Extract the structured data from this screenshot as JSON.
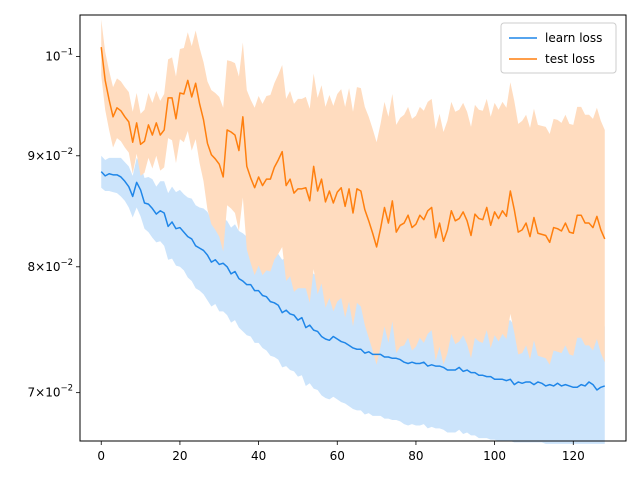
{
  "chart_data": {
    "type": "line",
    "title": "",
    "xlabel": "",
    "ylabel": "",
    "yscale": "log",
    "xlim": [
      -5.4,
      133.4
    ],
    "ylim": [
      0.0665,
      0.1045
    ],
    "xticks": [
      0,
      20,
      40,
      60,
      80,
      100,
      120
    ],
    "xtick_labels": [
      "0",
      "20",
      "40",
      "60",
      "80",
      "100",
      "120"
    ],
    "yticks": [
      0.07,
      0.08,
      0.09,
      0.1
    ],
    "ytick_labels": [
      {
        "base": "7",
        "exp": "-2"
      },
      {
        "base": "8",
        "exp": "-2"
      },
      {
        "base": "9",
        "exp": "-2"
      },
      {
        "base": "10",
        "exp": "-1"
      }
    ],
    "grid": false,
    "legend": {
      "position": "top-right"
    },
    "x_step": 1,
    "series": [
      {
        "name": "learn loss",
        "color": "#1f86e8",
        "band_color": "#cce4fb",
        "values": [
          0.0885,
          0.0881,
          0.0883,
          0.0882,
          0.0882,
          0.088,
          0.0876,
          0.0871,
          0.0862,
          0.0875,
          0.0868,
          0.0856,
          0.0855,
          0.0851,
          0.0846,
          0.0849,
          0.0847,
          0.0835,
          0.0839,
          0.0833,
          0.0834,
          0.083,
          0.0826,
          0.0824,
          0.0818,
          0.0816,
          0.0814,
          0.081,
          0.0804,
          0.0806,
          0.0802,
          0.0803,
          0.08,
          0.0794,
          0.0796,
          0.079,
          0.0788,
          0.0785,
          0.0785,
          0.078,
          0.078,
          0.0776,
          0.0775,
          0.0771,
          0.077,
          0.0768,
          0.0762,
          0.0764,
          0.0761,
          0.076,
          0.0756,
          0.0758,
          0.075,
          0.0752,
          0.0748,
          0.0747,
          0.0743,
          0.0741,
          0.074,
          0.0743,
          0.0741,
          0.0739,
          0.0738,
          0.0736,
          0.0734,
          0.0733,
          0.0733,
          0.073,
          0.0731,
          0.0729,
          0.0729,
          0.0729,
          0.0727,
          0.0727,
          0.0726,
          0.0726,
          0.0725,
          0.0723,
          0.0722,
          0.0723,
          0.0722,
          0.0722,
          0.0723,
          0.072,
          0.0721,
          0.072,
          0.072,
          0.0719,
          0.0717,
          0.0717,
          0.0717,
          0.0719,
          0.0716,
          0.0717,
          0.0715,
          0.0715,
          0.0713,
          0.0713,
          0.0712,
          0.0712,
          0.071,
          0.071,
          0.071,
          0.0709,
          0.071,
          0.0706,
          0.0708,
          0.0707,
          0.0708,
          0.0708,
          0.0706,
          0.0708,
          0.0707,
          0.0705,
          0.0706,
          0.0705,
          0.0707,
          0.0705,
          0.0706,
          0.0705,
          0.0704,
          0.0704,
          0.0706,
          0.0705,
          0.0708,
          0.0706,
          0.0702,
          0.0704,
          0.0705
        ],
        "lower": [
          0.087,
          0.0867,
          0.0867,
          0.0866,
          0.0865,
          0.0862,
          0.0858,
          0.0852,
          0.0843,
          0.0852,
          0.0844,
          0.0833,
          0.083,
          0.0825,
          0.0821,
          0.0822,
          0.0818,
          0.0806,
          0.0807,
          0.0801,
          0.08,
          0.0797,
          0.0791,
          0.0788,
          0.0782,
          0.078,
          0.0777,
          0.0772,
          0.0767,
          0.0769,
          0.0763,
          0.0763,
          0.076,
          0.0754,
          0.0756,
          0.075,
          0.0747,
          0.0744,
          0.0743,
          0.0738,
          0.0738,
          0.0734,
          0.0732,
          0.0728,
          0.0727,
          0.0725,
          0.0719,
          0.072,
          0.0717,
          0.0716,
          0.0712,
          0.0713,
          0.0705,
          0.0707,
          0.0703,
          0.0702,
          0.0698,
          0.0696,
          0.0695,
          0.0697,
          0.0695,
          0.0693,
          0.0692,
          0.069,
          0.0688,
          0.0687,
          0.0687,
          0.0684,
          0.0685,
          0.0683,
          0.0683,
          0.0683,
          0.0681,
          0.0681,
          0.068,
          0.068,
          0.0679,
          0.0677,
          0.0676,
          0.0677,
          0.0676,
          0.0676,
          0.0677,
          0.0674,
          0.0675,
          0.0674,
          0.0674,
          0.0673,
          0.0671,
          0.0671,
          0.0671,
          0.0673,
          0.067,
          0.0671,
          0.0669,
          0.0669,
          0.0667,
          0.0667,
          0.0667,
          0.0666,
          0.0666,
          0.0665,
          0.0665,
          0.0665,
          0.0665,
          0.0664,
          0.0664,
          0.0664,
          0.0664,
          0.0664,
          0.0664,
          0.0664,
          0.0664,
          0.0663,
          0.0663,
          0.0663,
          0.0663,
          0.0663,
          0.0663,
          0.0663,
          0.0663,
          0.0663,
          0.0663,
          0.0663,
          0.0663,
          0.0663,
          0.0663,
          0.0663,
          0.0663
        ],
        "upper": [
          0.09,
          0.0896,
          0.0898,
          0.0898,
          0.0898,
          0.0898,
          0.0894,
          0.089,
          0.0881,
          0.0898,
          0.0892,
          0.0879,
          0.088,
          0.0878,
          0.0871,
          0.0876,
          0.0876,
          0.0865,
          0.0871,
          0.0866,
          0.0868,
          0.0864,
          0.0861,
          0.086,
          0.0854,
          0.0852,
          0.0851,
          0.0848,
          0.0841,
          0.0844,
          0.0841,
          0.0842,
          0.084,
          0.0834,
          0.0837,
          0.0831,
          0.0829,
          0.0826,
          0.0827,
          0.0822,
          0.0823,
          0.0818,
          0.0818,
          0.0814,
          0.0813,
          0.0811,
          0.0806,
          0.0808,
          0.0805,
          0.0804,
          0.08,
          0.0803,
          0.0794,
          0.0797,
          0.0794,
          0.0792,
          0.0789,
          0.0787,
          0.0786,
          0.0789,
          0.0787,
          0.0785,
          0.0784,
          0.0782,
          0.078,
          0.0779,
          0.0779,
          0.0776,
          0.0777,
          0.0775,
          0.0775,
          0.0775,
          0.0773,
          0.0773,
          0.0772,
          0.0772,
          0.0771,
          0.0769,
          0.0768,
          0.0769,
          0.0768,
          0.0768,
          0.0769,
          0.0766,
          0.0767,
          0.0766,
          0.0766,
          0.0765,
          0.0763,
          0.0763,
          0.0763,
          0.0765,
          0.0762,
          0.0763,
          0.0761,
          0.0761,
          0.0759,
          0.0759,
          0.0758,
          0.0758,
          0.0756,
          0.0756,
          0.0756,
          0.0755,
          0.0756,
          0.0752,
          0.0754,
          0.0753,
          0.0754,
          0.0754,
          0.0752,
          0.0754,
          0.0753,
          0.0751,
          0.0752,
          0.0751,
          0.0753,
          0.0751,
          0.0752,
          0.0751,
          0.075,
          0.075,
          0.0752,
          0.0751,
          0.0754,
          0.0752,
          0.0748,
          0.075,
          0.0751
        ]
      },
      {
        "name": "test loss",
        "color": "#ff7f0e",
        "band_color": "#ffdcbf",
        "values": [
          0.101,
          0.0975,
          0.0955,
          0.0938,
          0.0947,
          0.0944,
          0.0938,
          0.0933,
          0.0913,
          0.0932,
          0.0911,
          0.0914,
          0.093,
          0.092,
          0.0932,
          0.092,
          0.0925,
          0.0957,
          0.0957,
          0.0936,
          0.0962,
          0.0961,
          0.0975,
          0.0958,
          0.0972,
          0.0951,
          0.0935,
          0.0912,
          0.0901,
          0.0897,
          0.0892,
          0.088,
          0.0925,
          0.0923,
          0.092,
          0.0905,
          0.0938,
          0.089,
          0.0879,
          0.087,
          0.088,
          0.0872,
          0.0878,
          0.0878,
          0.0889,
          0.0896,
          0.0904,
          0.0872,
          0.0878,
          0.0865,
          0.0869,
          0.0869,
          0.087,
          0.0858,
          0.089,
          0.0867,
          0.0878,
          0.0857,
          0.0867,
          0.0856,
          0.0866,
          0.087,
          0.0853,
          0.0869,
          0.0847,
          0.0869,
          0.0867,
          0.085,
          0.084,
          0.0829,
          0.0817,
          0.0833,
          0.0852,
          0.0838,
          0.0858,
          0.083,
          0.0836,
          0.0838,
          0.0845,
          0.0834,
          0.0837,
          0.0845,
          0.0841,
          0.0849,
          0.0852,
          0.0825,
          0.0838,
          0.0822,
          0.0832,
          0.0849,
          0.084,
          0.0842,
          0.0848,
          0.084,
          0.0827,
          0.0846,
          0.0842,
          0.0841,
          0.0852,
          0.0836,
          0.0848,
          0.0842,
          0.0849,
          0.0844,
          0.0867,
          0.085,
          0.083,
          0.0832,
          0.0838,
          0.0826,
          0.0843,
          0.0829,
          0.0828,
          0.0827,
          0.0821,
          0.0834,
          0.0833,
          0.0831,
          0.0838,
          0.083,
          0.0829,
          0.0845,
          0.0845,
          0.0838,
          0.0838,
          0.0834,
          0.0844,
          0.0832,
          0.0824
        ],
        "lower": [
          0.098,
          0.0945,
          0.0925,
          0.0908,
          0.0917,
          0.0914,
          0.0908,
          0.0903,
          0.0883,
          0.0902,
          0.0881,
          0.0884,
          0.0898,
          0.0888,
          0.09,
          0.0886,
          0.0889,
          0.0917,
          0.0915,
          0.0893,
          0.0916,
          0.0913,
          0.0924,
          0.0905,
          0.0916,
          0.0893,
          0.0876,
          0.085,
          0.0837,
          0.0832,
          0.0826,
          0.0813,
          0.0854,
          0.0851,
          0.0847,
          0.0831,
          0.0861,
          0.0815,
          0.0803,
          0.0793,
          0.0801,
          0.0793,
          0.0797,
          0.0796,
          0.0806,
          0.0811,
          0.0817,
          0.0788,
          0.0792,
          0.0779,
          0.0782,
          0.0782,
          0.0782,
          0.077,
          0.0798,
          0.0777,
          0.0786,
          0.0766,
          0.0774,
          0.0763,
          0.0771,
          0.0774,
          0.0758,
          0.0771,
          0.0751,
          0.077,
          0.0767,
          0.0752,
          0.0742,
          0.0732,
          0.0721,
          0.0735,
          0.0751,
          0.0738,
          0.0755,
          0.073,
          0.0735,
          0.0736,
          0.0742,
          0.0732,
          0.0735,
          0.0742,
          0.0738,
          0.0745,
          0.0748,
          0.0724,
          0.0735,
          0.0721,
          0.073,
          0.0745,
          0.0737,
          0.0739,
          0.0744,
          0.0737,
          0.0726,
          0.0742,
          0.0739,
          0.0738,
          0.0748,
          0.0734,
          0.0744,
          0.0739,
          0.0745,
          0.0741,
          0.0761,
          0.0746,
          0.0729,
          0.073,
          0.0736,
          0.0725,
          0.074,
          0.0728,
          0.0727,
          0.0726,
          0.0721,
          0.0732,
          0.0731,
          0.073,
          0.0736,
          0.0729,
          0.0728,
          0.0742,
          0.0742,
          0.0736,
          0.0736,
          0.0732,
          0.0741,
          0.073,
          0.0723
        ],
        "upper": [
          0.104,
          0.1005,
          0.0985,
          0.0968,
          0.0977,
          0.0974,
          0.0968,
          0.0963,
          0.0943,
          0.0962,
          0.0941,
          0.0945,
          0.0962,
          0.0952,
          0.0964,
          0.0954,
          0.0961,
          0.0997,
          0.0999,
          0.0979,
          0.1008,
          0.1009,
          0.1026,
          0.1011,
          0.1028,
          0.1009,
          0.0994,
          0.0974,
          0.0965,
          0.0962,
          0.0958,
          0.0947,
          0.0996,
          0.0995,
          0.0993,
          0.0979,
          0.1015,
          0.0965,
          0.0955,
          0.0947,
          0.0959,
          0.0951,
          0.0959,
          0.096,
          0.0972,
          0.0981,
          0.0991,
          0.0956,
          0.0964,
          0.0951,
          0.0956,
          0.0956,
          0.0958,
          0.0946,
          0.0982,
          0.0957,
          0.097,
          0.0948,
          0.096,
          0.0949,
          0.0961,
          0.0966,
          0.0948,
          0.0967,
          0.0943,
          0.0968,
          0.0967,
          0.0948,
          0.0938,
          0.0926,
          0.0913,
          0.0931,
          0.0953,
          0.0938,
          0.0961,
          0.093,
          0.0937,
          0.094,
          0.0948,
          0.0936,
          0.0939,
          0.0948,
          0.0944,
          0.0953,
          0.0956,
          0.0926,
          0.0941,
          0.0923,
          0.0934,
          0.0953,
          0.0943,
          0.0945,
          0.0952,
          0.0943,
          0.0928,
          0.095,
          0.0945,
          0.0944,
          0.0956,
          0.0938,
          0.0952,
          0.0945,
          0.0953,
          0.0947,
          0.0973,
          0.0954,
          0.0931,
          0.0934,
          0.094,
          0.0927,
          0.0946,
          0.093,
          0.0929,
          0.0928,
          0.0921,
          0.0936,
          0.0935,
          0.0932,
          0.094,
          0.0931,
          0.093,
          0.0948,
          0.0948,
          0.094,
          0.094,
          0.0936,
          0.0947,
          0.0934,
          0.0925
        ]
      }
    ]
  }
}
